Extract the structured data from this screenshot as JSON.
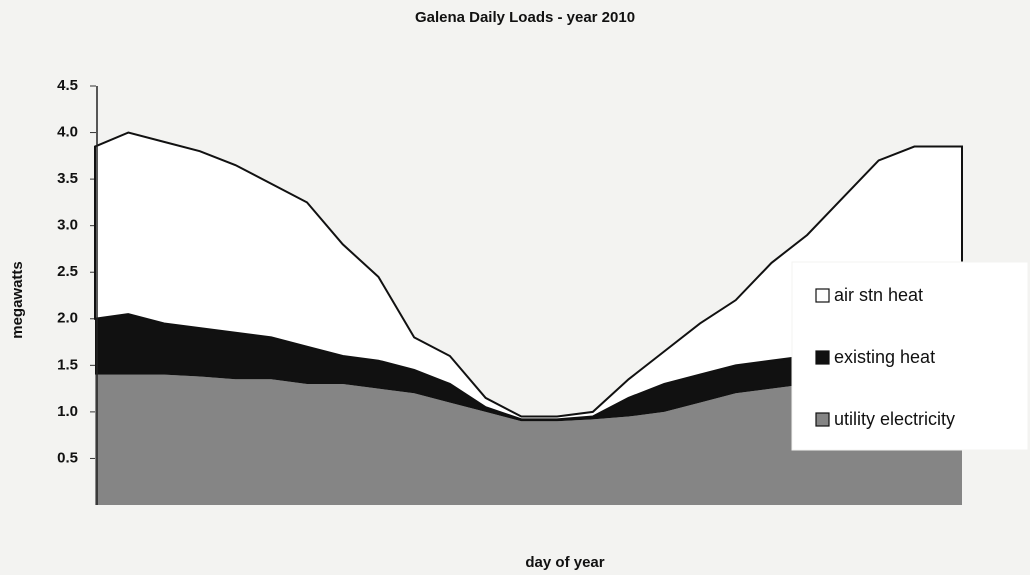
{
  "chart_data": {
    "type": "stacked_area",
    "title": "Galena Daily Loads - year 2010",
    "xlabel": "day of year",
    "ylabel": "megawatts",
    "x": [
      1,
      15,
      30,
      45,
      60,
      75,
      90,
      105,
      120,
      135,
      150,
      165,
      180,
      195,
      210,
      225,
      240,
      255,
      270,
      285,
      300,
      315,
      330,
      345,
      365
    ],
    "xlim": [
      1,
      365
    ],
    "ylim": [
      0,
      4.5
    ],
    "yticks": [
      0.5,
      {
        "value": 1,
        "label": "1.0"
      },
      1.5,
      {
        "value": 2,
        "label": "2.0"
      },
      2.5,
      {
        "value": 3,
        "label": "3.0"
      },
      3.5,
      {
        "value": 4,
        "label": "4.0"
      },
      4.5
    ],
    "legend": "right",
    "series": [
      {
        "name": "utility electricity",
        "color": "#858585",
        "values": [
          1.4,
          1.4,
          1.4,
          1.38,
          1.35,
          1.35,
          1.3,
          1.3,
          1.25,
          1.2,
          1.1,
          1.0,
          0.9,
          0.9,
          0.92,
          0.95,
          1.0,
          1.1,
          1.2,
          1.25,
          1.3,
          1.3,
          1.3,
          1.3,
          1.3
        ]
      },
      {
        "name": "existing heat",
        "color": "#111111",
        "values": [
          0.6,
          0.65,
          0.55,
          0.52,
          0.5,
          0.45,
          0.4,
          0.3,
          0.3,
          0.25,
          0.2,
          0.05,
          0.02,
          0.02,
          0.03,
          0.2,
          0.3,
          0.3,
          0.3,
          0.3,
          0.3,
          0.35,
          0.4,
          0.45,
          0.5
        ]
      },
      {
        "name": "air stn heat",
        "color": "#ffffff",
        "values": [
          1.85,
          1.95,
          1.95,
          1.9,
          1.8,
          1.65,
          1.55,
          1.2,
          0.9,
          0.35,
          0.3,
          0.1,
          0.03,
          0.03,
          0.05,
          0.2,
          0.35,
          0.55,
          0.7,
          1.05,
          1.3,
          1.65,
          2.0,
          2.1,
          2.05
        ]
      }
    ]
  }
}
